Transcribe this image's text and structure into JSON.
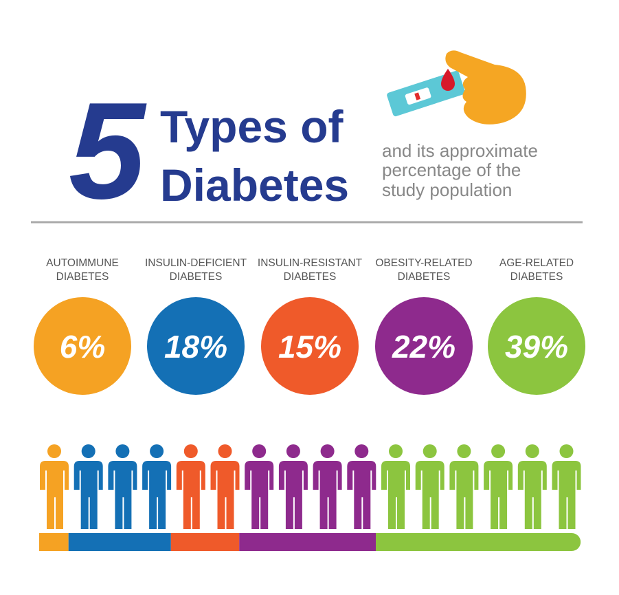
{
  "header": {
    "number": "5",
    "title_lines": [
      "Types of",
      "Diabetes"
    ],
    "subtitle_lines": [
      "and its approximate",
      "percentage of the",
      "study population"
    ]
  },
  "chart_data": {
    "type": "infographic",
    "items": [
      {
        "label_lines": [
          "AUTOIMMUNE",
          "DIABETES"
        ],
        "value": 6,
        "value_label": "6%",
        "color": "#f5a223",
        "icons": 1
      },
      {
        "label_lines": [
          "INSULIN-DEFICIENT",
          "DIABETES"
        ],
        "value": 18,
        "value_label": "18%",
        "color": "#1470b5",
        "icons": 3
      },
      {
        "label_lines": [
          "INSULIN-RESISTANT",
          "DIABETES"
        ],
        "value": 15,
        "value_label": "15%",
        "color": "#ef5a2a",
        "icons": 2
      },
      {
        "label_lines": [
          "OBESITY-RELATED",
          "DIABETES"
        ],
        "value": 22,
        "value_label": "22%",
        "color": "#8e2a8d",
        "icons": 4
      },
      {
        "label_lines": [
          "AGE-RELATED",
          "DIABETES"
        ],
        "value": 39,
        "value_label": "39%",
        "color": "#8cc53f",
        "icons": 6
      }
    ]
  }
}
